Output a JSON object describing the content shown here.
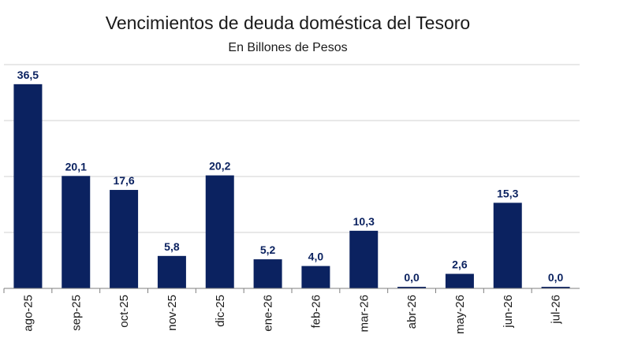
{
  "chart_data": {
    "type": "bar",
    "title": "Vencimientos de deuda doméstica del Tesoro",
    "subtitle": "En Billones de Pesos",
    "categories": [
      "ago-25",
      "sep-25",
      "oct-25",
      "nov-25",
      "dic-25",
      "ene-26",
      "feb-26",
      "mar-26",
      "abr-26",
      "may-26",
      "jun-26",
      "jul-26"
    ],
    "values": [
      36.5,
      20.1,
      17.6,
      5.8,
      20.2,
      5.2,
      4.0,
      10.3,
      0.0,
      2.6,
      15.3,
      0.0
    ],
    "value_labels": [
      "36,5",
      "20,1",
      "17,6",
      "5,8",
      "20,2",
      "5,2",
      "4,0",
      "10,3",
      "0,0",
      "2,6",
      "15,3",
      "0,0"
    ],
    "ylim": [
      0,
      40
    ],
    "grid": true,
    "legend": "none",
    "colors": {
      "bar": "#0b2260",
      "label": "#0b2260",
      "grid": "#d0d0d0",
      "axis": "#7f7f7f",
      "text": "#1a1a1a"
    }
  }
}
